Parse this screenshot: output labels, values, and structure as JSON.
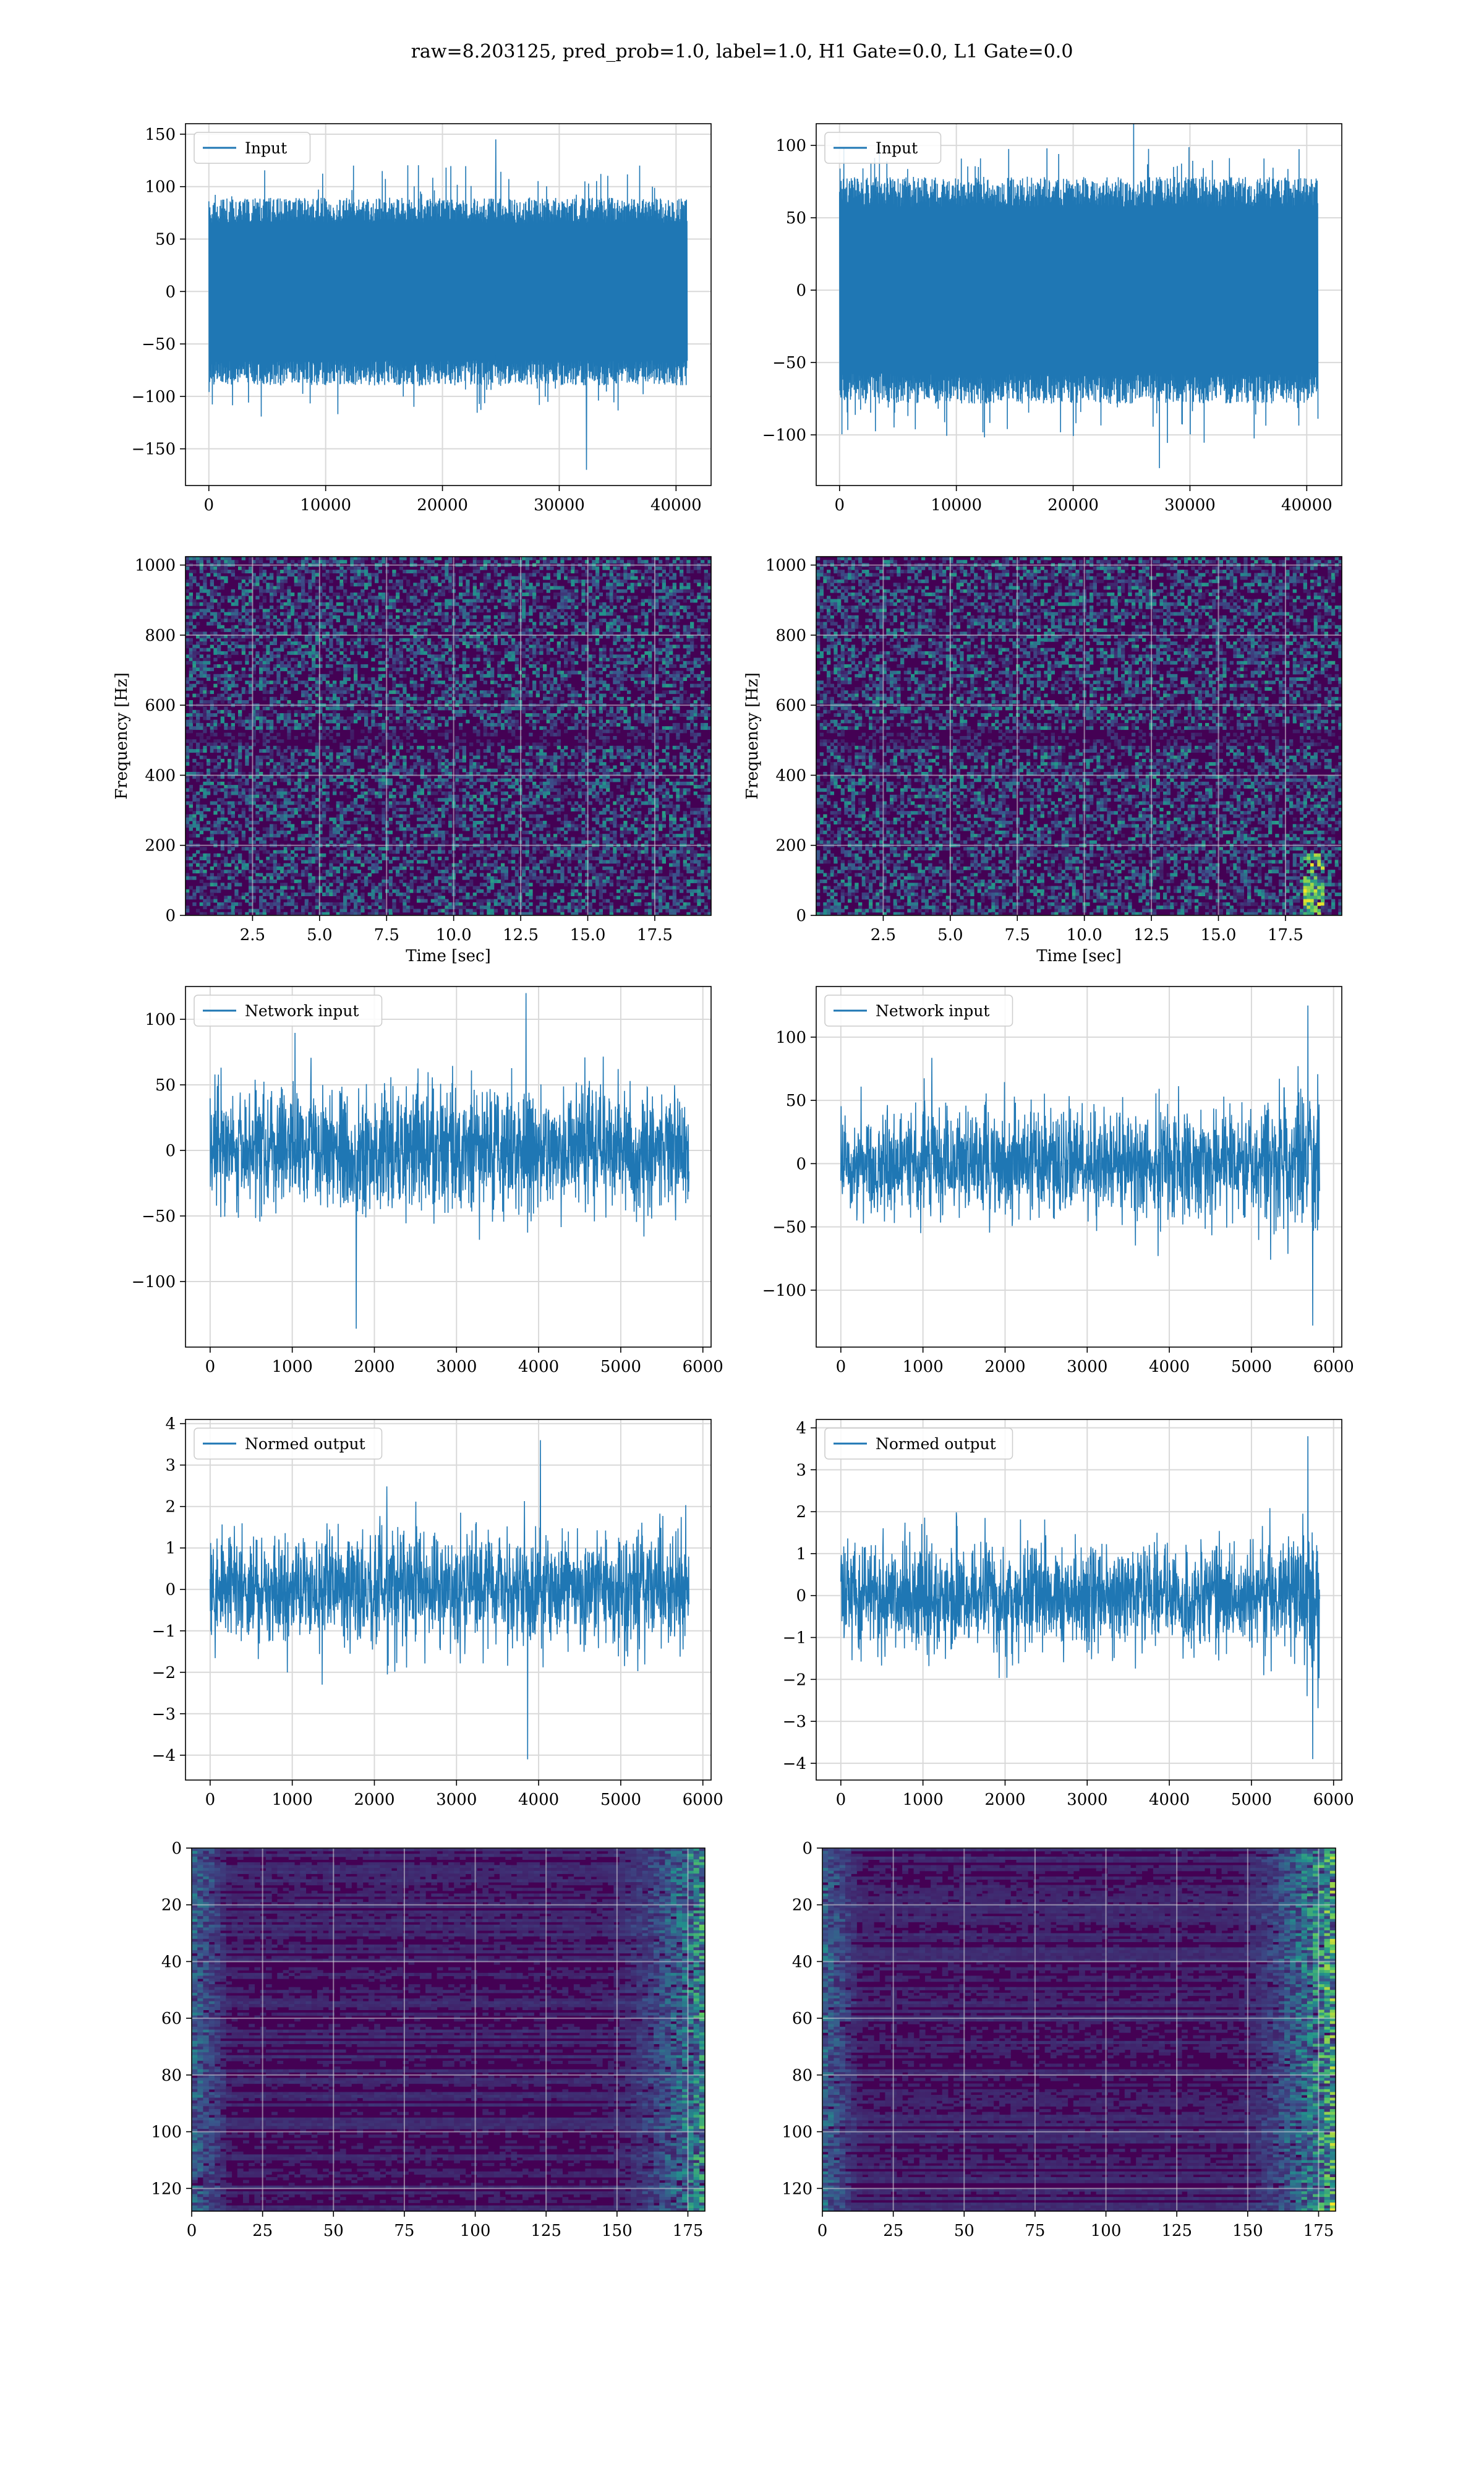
{
  "title": "raw=8.203125, pred_prob=1.0, label=1.0, H1 Gate=0.0, L1 Gate=0.0",
  "colors": {
    "line": "#1f77b4",
    "grid": "#d9d9d9",
    "viridis_low": "#440154",
    "viridis_mid": "#21918c",
    "viridis_high": "#fde725"
  },
  "chart_data": [
    {
      "id": "input-h1",
      "type": "line",
      "legend": "Input",
      "style": "dense-noise",
      "xlim": [
        -2000,
        43000
      ],
      "ylim": [
        -185,
        160
      ],
      "xticks": [
        0,
        10000,
        20000,
        30000,
        40000
      ],
      "yticks": [
        -150,
        -100,
        -50,
        0,
        50,
        100,
        150
      ],
      "x": [
        0,
        40960
      ],
      "envelope": [
        -80,
        80
      ],
      "peaks": [
        -170,
        145
      ],
      "xlabel": "",
      "ylabel": ""
    },
    {
      "id": "input-l1",
      "type": "line",
      "legend": "Input",
      "style": "dense-noise",
      "xlim": [
        -2000,
        43000
      ],
      "ylim": [
        -135,
        115
      ],
      "xticks": [
        0,
        10000,
        20000,
        30000,
        40000
      ],
      "yticks": [
        -100,
        -50,
        0,
        50,
        100
      ],
      "x": [
        0,
        40960
      ],
      "envelope": [
        -70,
        70
      ],
      "peaks": [
        -123,
        125
      ],
      "xlabel": "",
      "ylabel": ""
    },
    {
      "id": "spectrogram-h1",
      "type": "heatmap",
      "style": "spectrogram",
      "xlim": [
        0,
        19.6
      ],
      "ylim": [
        0,
        1024
      ],
      "xticks": [
        2.5,
        5.0,
        7.5,
        10.0,
        12.5,
        15.0,
        17.5
      ],
      "yticks": [
        0,
        200,
        400,
        600,
        800,
        1000
      ],
      "xlabel": "Time [sec]",
      "ylabel": "Frequency [Hz]"
    },
    {
      "id": "spectrogram-l1",
      "type": "heatmap",
      "style": "spectrogram",
      "xlim": [
        0,
        19.6
      ],
      "ylim": [
        0,
        1024
      ],
      "xticks": [
        2.5,
        5.0,
        7.5,
        10.0,
        12.5,
        15.0,
        17.5
      ],
      "yticks": [
        0,
        200,
        400,
        600,
        800,
        1000
      ],
      "xlabel": "Time [sec]",
      "ylabel": "Frequency [Hz]",
      "chirp": [
        18.6,
        20,
        220
      ]
    },
    {
      "id": "network-input-h1",
      "type": "line",
      "legend": "Network input",
      "style": "noise",
      "xlim": [
        -300,
        6100
      ],
      "ylim": [
        -150,
        125
      ],
      "xticks": [
        0,
        1000,
        2000,
        3000,
        4000,
        5000,
        6000
      ],
      "yticks": [
        -100,
        -50,
        0,
        50,
        100
      ],
      "x": [
        0,
        5830
      ],
      "envelope": [
        -55,
        55
      ],
      "peaks": [
        -136,
        120
      ],
      "xlabel": "",
      "ylabel": ""
    },
    {
      "id": "network-input-l1",
      "type": "line",
      "legend": "Network input",
      "style": "noise-ramp",
      "xlim": [
        -300,
        6100
      ],
      "ylim": [
        -145,
        140
      ],
      "xticks": [
        0,
        1000,
        2000,
        3000,
        4000,
        5000,
        6000
      ],
      "yticks": [
        -100,
        -50,
        0,
        50,
        100
      ],
      "x": [
        0,
        5830
      ],
      "envelope": [
        -50,
        50
      ],
      "peaks": [
        -128,
        125
      ],
      "xlabel": "",
      "ylabel": ""
    },
    {
      "id": "normed-output-h1",
      "type": "line",
      "legend": "Normed output",
      "style": "noise",
      "xlim": [
        -300,
        6100
      ],
      "ylim": [
        -4.6,
        4.1
      ],
      "xticks": [
        0,
        1000,
        2000,
        3000,
        4000,
        5000,
        6000
      ],
      "yticks": [
        -4,
        -3,
        -2,
        -1,
        0,
        1,
        2,
        3,
        4
      ],
      "x": [
        0,
        5830
      ],
      "envelope": [
        -1.6,
        1.6
      ],
      "peaks": [
        -4.1,
        3.6
      ],
      "xlabel": "",
      "ylabel": ""
    },
    {
      "id": "normed-output-l1",
      "type": "line",
      "legend": "Normed output",
      "style": "noise-ramp",
      "xlim": [
        -300,
        6100
      ],
      "ylim": [
        -4.4,
        4.2
      ],
      "xticks": [
        0,
        1000,
        2000,
        3000,
        4000,
        5000,
        6000
      ],
      "yticks": [
        -4,
        -3,
        -2,
        -1,
        0,
        1,
        2,
        3,
        4
      ],
      "x": [
        0,
        5830
      ],
      "envelope": [
        -1.5,
        1.5
      ],
      "peaks": [
        -3.9,
        3.8
      ],
      "xlabel": "",
      "ylabel": ""
    },
    {
      "id": "feature-map-h1",
      "type": "heatmap",
      "style": "feature-map",
      "xlim": [
        0,
        181
      ],
      "ylim": [
        128,
        0
      ],
      "xticks": [
        0,
        25,
        50,
        75,
        100,
        125,
        150,
        175
      ],
      "yticks": [
        0,
        20,
        40,
        60,
        80,
        100,
        120
      ],
      "xlabel": "",
      "ylabel": ""
    },
    {
      "id": "feature-map-l1",
      "type": "heatmap",
      "style": "feature-map",
      "xlim": [
        0,
        181
      ],
      "ylim": [
        128,
        0
      ],
      "xticks": [
        0,
        25,
        50,
        75,
        100,
        125,
        150,
        175
      ],
      "yticks": [
        0,
        20,
        40,
        60,
        80,
        100,
        120
      ],
      "xlabel": "",
      "ylabel": ""
    }
  ]
}
